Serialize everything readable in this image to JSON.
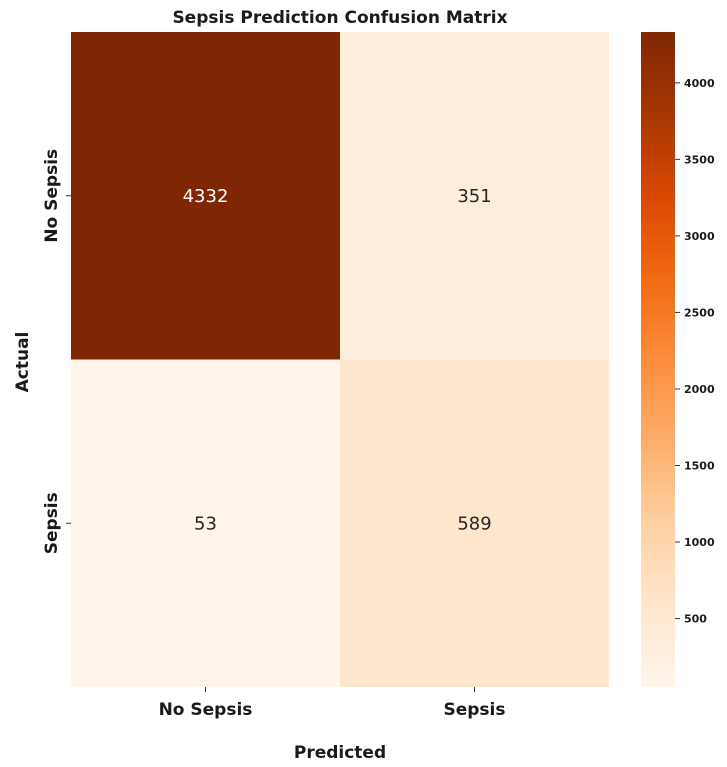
{
  "chart_data": {
    "type": "heatmap",
    "title": "Sepsis Prediction Confusion Matrix",
    "xlabel": "Predicted",
    "ylabel": "Actual",
    "x_categories": [
      "No Sepsis",
      "Sepsis"
    ],
    "y_categories": [
      "No Sepsis",
      "Sepsis"
    ],
    "values": [
      [
        4332,
        351
      ],
      [
        53,
        589
      ]
    ],
    "colormap": "Oranges",
    "color_range": [
      53,
      4332
    ],
    "colorbar_ticks": [
      500,
      1000,
      1500,
      2000,
      2500,
      3000,
      3500,
      4000
    ]
  }
}
